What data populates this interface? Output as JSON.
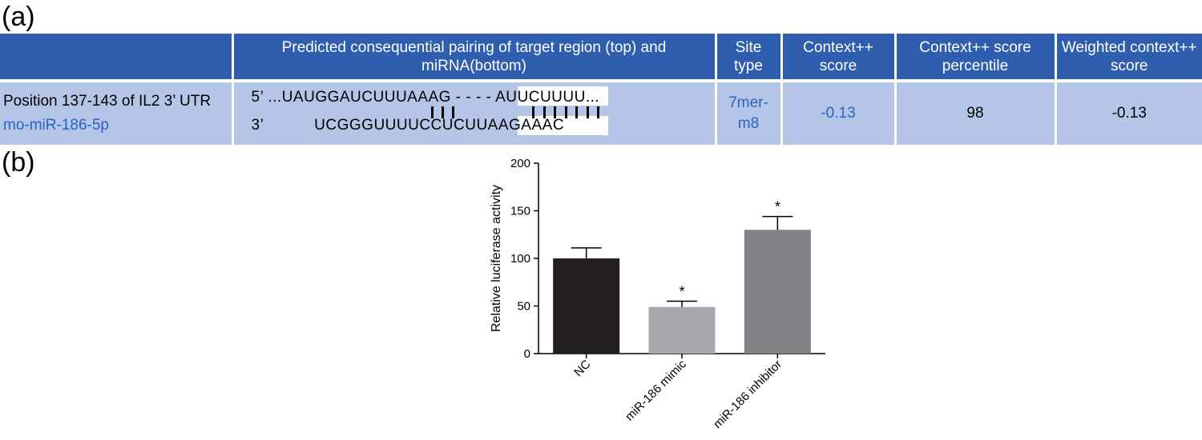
{
  "panel_a_label": "(a)",
  "panel_b_label": "(b)",
  "table": {
    "headers": [
      "",
      "Predicted consequential pairing of target region (top) and miRNA(bottom)",
      "Site type",
      "Context++ score",
      "Context++ score percentile",
      "Weighted context++ score"
    ],
    "row": {
      "position": "Position 137-143 of IL2 3’ UTR",
      "mirna": "mo-miR-186-5p",
      "top_prime": "5’",
      "top_seq_a": "...UAUGGAUCUUUAAAG - - - - ",
      "top_seq_b": "AUUCUUUU",
      "top_seq_c": "...",
      "bottom_prime": "3’",
      "bottom_seq_a": "UCGGGUUUUCCUCU",
      "bottom_seq_b": "UAAGAAAC",
      "site_type": "7mer-m8",
      "context_score": "-0.13",
      "percentile": "98",
      "weighted_score": "-0.13"
    },
    "colors": {
      "header_bg": "#2e5ead",
      "row_bg": "#b4c5e7",
      "accent_text": "#2a63c0"
    }
  },
  "chart_data": {
    "type": "bar",
    "categories": [
      "NC",
      "miR-186 mimic",
      "miR-186 inhibitor"
    ],
    "values": [
      100,
      49,
      130
    ],
    "errors": [
      11,
      6,
      14
    ],
    "significance": [
      "",
      "*",
      "*"
    ],
    "colors": [
      "#231f20",
      "#a7a9ae",
      "#808285"
    ],
    "title": "",
    "xlabel": "",
    "ylabel": "Relative luciferase activity",
    "ylim": [
      0,
      200
    ],
    "yticks": [
      0,
      50,
      100,
      150,
      200
    ],
    "grid": false
  }
}
